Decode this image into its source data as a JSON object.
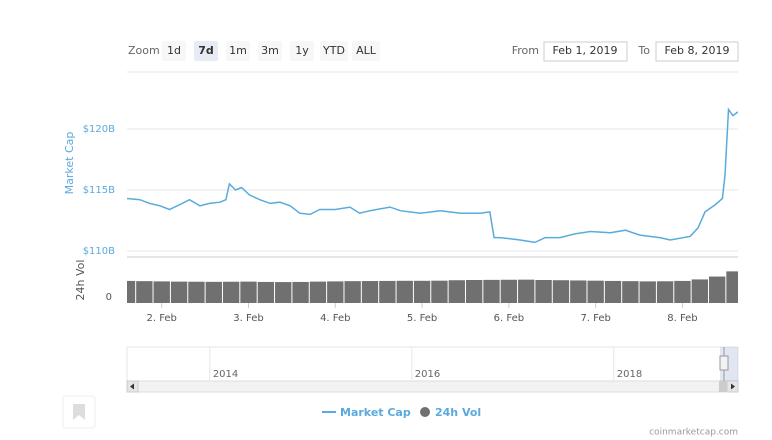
{
  "zoom": {
    "label": "Zoom",
    "buttons": [
      "1d",
      "7d",
      "1m",
      "3m",
      "1y",
      "YTD",
      "ALL"
    ],
    "active": 1
  },
  "range": {
    "from_label": "From",
    "from": "Feb 1, 2019",
    "to_label": "To",
    "to": "Feb 8, 2019"
  },
  "chart_data": [
    {
      "type": "line",
      "y_label": "Market Cap",
      "x": [
        1.6,
        1.75,
        1.86,
        1.98,
        2.09,
        2.21,
        2.32,
        2.44,
        2.55,
        2.67,
        2.74,
        2.78,
        2.85,
        2.92,
        3.01,
        3.13,
        3.25,
        3.36,
        3.48,
        3.59,
        3.71,
        3.82,
        4.0,
        4.17,
        4.28,
        4.4,
        4.63,
        4.75,
        4.98,
        5.21,
        5.44,
        5.67,
        5.78,
        5.83,
        5.9,
        6.13,
        6.3,
        6.42,
        6.59,
        6.76,
        6.94,
        7.17,
        7.34,
        7.51,
        7.74,
        7.86,
        8.09,
        8.18,
        8.26,
        8.38,
        8.46,
        8.49,
        8.53,
        8.58,
        8.64
      ],
      "series": [
        {
          "name": "Market Cap",
          "color": "#5aaadd",
          "values": [
            114.3,
            114.2,
            113.9,
            113.7,
            113.4,
            113.8,
            114.2,
            113.7,
            113.9,
            114.0,
            114.2,
            115.5,
            115.0,
            115.2,
            114.6,
            114.2,
            113.9,
            114.0,
            113.7,
            113.1,
            113.0,
            113.4,
            113.4,
            113.6,
            113.1,
            113.3,
            113.6,
            113.3,
            113.1,
            113.3,
            113.1,
            113.1,
            113.2,
            111.1,
            111.1,
            110.9,
            110.7,
            111.1,
            111.1,
            111.4,
            111.6,
            111.5,
            111.7,
            111.3,
            111.1,
            110.9,
            111.2,
            111.9,
            113.2,
            113.8,
            114.3,
            116.2,
            121.6,
            121.1,
            121.4
          ]
        }
      ],
      "xlim": [
        1.6,
        8.64
      ],
      "xticks": [
        {
          "value": 2,
          "label": "2. Feb"
        },
        {
          "value": 3,
          "label": "3. Feb"
        },
        {
          "value": 4,
          "label": "4. Feb"
        },
        {
          "value": 5,
          "label": "5. Feb"
        },
        {
          "value": 6,
          "label": "6. Feb"
        },
        {
          "value": 7,
          "label": "7. Feb"
        },
        {
          "value": 8,
          "label": "8. Feb"
        }
      ],
      "ylim": [
        109.67,
        124.67
      ],
      "yticks": [
        {
          "value": 110,
          "label": "$110B"
        },
        {
          "value": 115,
          "label": "$115B"
        },
        {
          "value": 120,
          "label": "$120B"
        }
      ],
      "grid": true
    },
    {
      "type": "bar",
      "y_label": "24h Vol",
      "x": [
        1.6,
        1.8,
        2.0,
        2.2,
        2.4,
        2.6,
        2.8,
        3.0,
        3.2,
        3.4,
        3.6,
        3.8,
        4.0,
        4.2,
        4.4,
        4.6,
        4.8,
        5.0,
        5.2,
        5.4,
        5.6,
        5.8,
        6.0,
        6.2,
        6.4,
        6.6,
        6.8,
        7.0,
        7.2,
        7.4,
        7.6,
        7.8,
        8.0,
        8.2,
        8.4,
        8.6
      ],
      "series": [
        {
          "name": "24h Vol",
          "color": "#707070",
          "values": [
            19.2,
            19,
            18.8,
            18.6,
            18.5,
            18.4,
            18.5,
            18.6,
            18.3,
            18.2,
            18.3,
            18.6,
            18.8,
            19,
            19.1,
            19.2,
            19.3,
            19.3,
            19.4,
            19.8,
            20,
            20.1,
            20.2,
            20.3,
            20,
            19.8,
            19.6,
            19.4,
            19.2,
            19,
            18.8,
            18.9,
            19.2,
            20.5,
            23,
            27.5
          ]
        }
      ],
      "xlim": [
        1.6,
        8.64
      ],
      "ylim": [
        0,
        40
      ],
      "yticks": [
        0
      ]
    },
    {
      "type": "navigator",
      "xlim": [
        2013.18,
        2019.23
      ],
      "xticks": [
        2014,
        2016,
        2018
      ]
    }
  ],
  "credit": "coinmarketcap.com"
}
